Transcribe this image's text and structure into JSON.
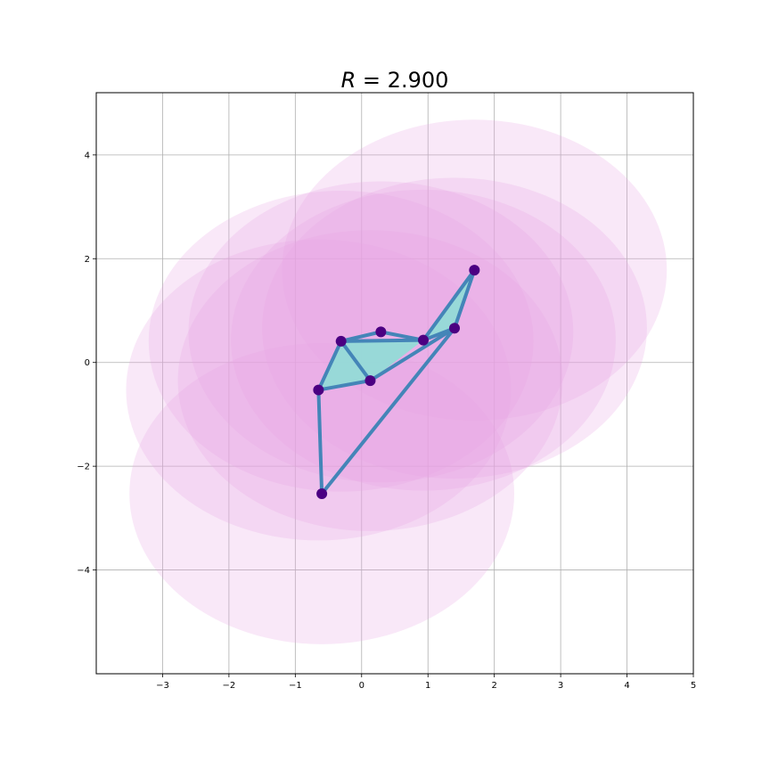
{
  "chart_data": {
    "type": "scatter",
    "title": "R = 2.900",
    "title_parts": {
      "symbol": "R",
      "equals": " = ",
      "value": "2.900"
    },
    "xlabel": "",
    "ylabel": "",
    "xlim": [
      -4,
      5
    ],
    "ylim": [
      -6,
      5.2
    ],
    "grid": true,
    "x_ticks": [
      -3,
      -2,
      -1,
      0,
      1,
      2,
      3,
      4,
      5
    ],
    "y_ticks": [
      -4,
      -2,
      0,
      2,
      4
    ],
    "x_tick_labels": [
      "−3",
      "−2",
      "−1",
      "0",
      "1",
      "2",
      "3",
      "4",
      "5"
    ],
    "y_tick_labels": [
      "−4",
      "−2",
      "0",
      "2",
      "4"
    ],
    "radius": 2.9,
    "points": [
      {
        "x": 1.7,
        "y": 1.78
      },
      {
        "x": 1.4,
        "y": 0.66
      },
      {
        "x": 0.93,
        "y": 0.43
      },
      {
        "x": 0.29,
        "y": 0.59
      },
      {
        "x": -0.31,
        "y": 0.41
      },
      {
        "x": 0.13,
        "y": -0.35
      },
      {
        "x": -0.65,
        "y": -0.53
      },
      {
        "x": -0.6,
        "y": -2.53
      }
    ],
    "edges": [
      [
        0,
        1
      ],
      [
        0,
        2
      ],
      [
        1,
        2
      ],
      [
        1,
        5
      ],
      [
        1,
        7
      ],
      [
        2,
        3
      ],
      [
        2,
        4
      ],
      [
        3,
        4
      ],
      [
        4,
        5
      ],
      [
        4,
        6
      ],
      [
        5,
        6
      ],
      [
        6,
        7
      ]
    ],
    "triangles": [
      [
        0,
        1,
        2
      ],
      [
        2,
        4,
        5
      ],
      [
        4,
        5,
        6
      ]
    ],
    "colors": {
      "disk": "#e8a3e3",
      "triangle": "#8fded6",
      "edge": "#4485b8",
      "point": "#4b0082",
      "grid": "#b0b0b0"
    }
  }
}
